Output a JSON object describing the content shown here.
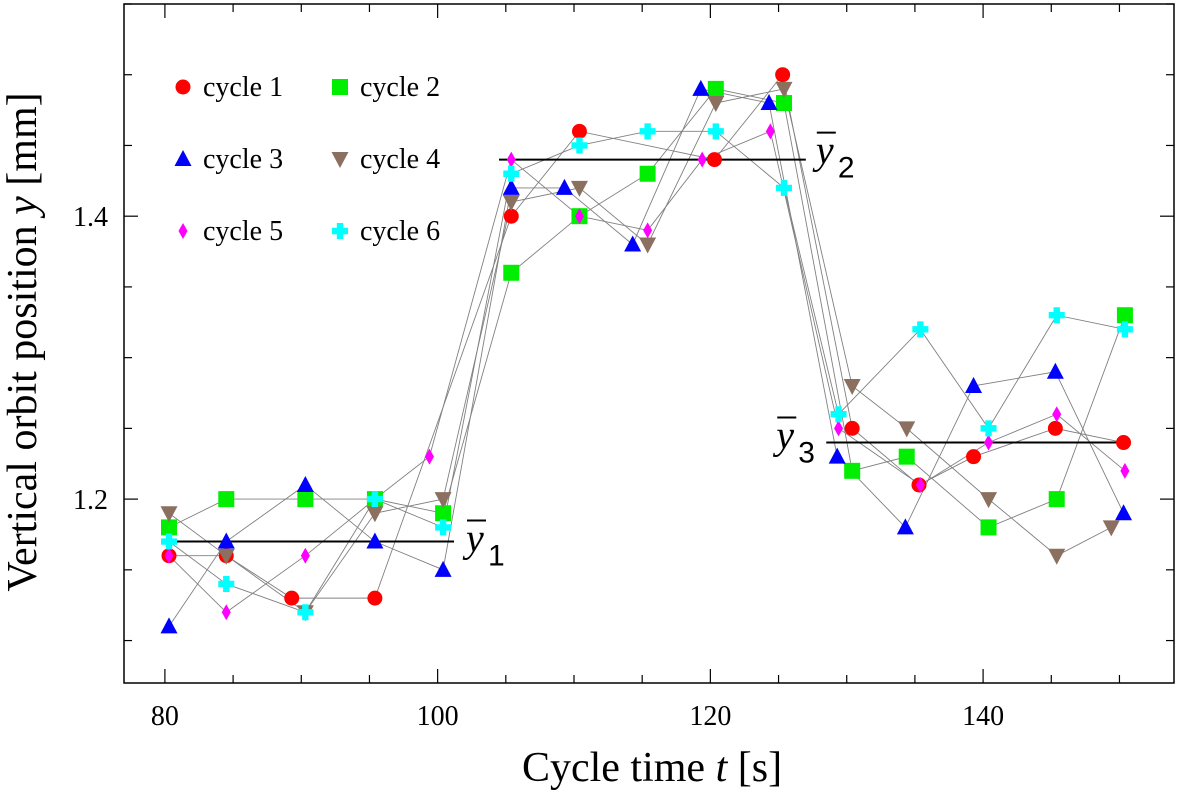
{
  "chart_data": {
    "type": "scatter",
    "xlabel_text": "Cycle time",
    "xlabel_var": "t",
    "xlabel_unit": "[s]",
    "ylabel_text": "Vertical orbit position",
    "ylabel_var": "y",
    "ylabel_unit": "[mm]",
    "xlim": [
      77,
      154
    ],
    "ylim": [
      1.07,
      1.55
    ],
    "xticks": [
      80,
      100,
      120,
      140
    ],
    "yticks": [
      1.2,
      1.4
    ],
    "x_minor_step": 5,
    "y_minor_step": 0.05,
    "grid": false,
    "legend_position": "top-left",
    "connect_series": true,
    "series": [
      {
        "name": "cycle 1",
        "color": "#ff0000",
        "marker": "circle",
        "x": [
          80.3,
          84.5,
          89.3,
          95.4,
          105.4,
          110.4,
          120.3,
          125.3,
          130.4,
          135.3,
          139.3,
          145.3,
          150.3
        ],
        "y": [
          1.16,
          1.16,
          1.13,
          1.13,
          1.4,
          1.46,
          1.44,
          1.5,
          1.25,
          1.21,
          1.23,
          1.25,
          1.24
        ]
      },
      {
        "name": "cycle 2",
        "color": "#00ee00",
        "marker": "square",
        "x": [
          80.3,
          84.5,
          90.3,
          95.4,
          100.4,
          105.4,
          110.4,
          115.4,
          120.4,
          125.4,
          130.4,
          134.4,
          140.4,
          145.4,
          150.4
        ],
        "y": [
          1.18,
          1.2,
          1.2,
          1.2,
          1.19,
          1.36,
          1.4,
          1.43,
          1.49,
          1.48,
          1.22,
          1.23,
          1.18,
          1.2,
          1.33
        ]
      },
      {
        "name": "cycle 3",
        "color": "#0000ff",
        "marker": "triangle-up",
        "x": [
          80.3,
          84.5,
          90.3,
          95.4,
          100.4,
          105.4,
          109.3,
          114.3,
          119.3,
          124.3,
          129.3,
          134.3,
          139.3,
          145.3,
          150.3
        ],
        "y": [
          1.11,
          1.17,
          1.21,
          1.17,
          1.15,
          1.42,
          1.42,
          1.38,
          1.49,
          1.48,
          1.23,
          1.18,
          1.28,
          1.29,
          1.19
        ]
      },
      {
        "name": "cycle 4",
        "color": "#8b6f5f",
        "marker": "triangle-down",
        "x": [
          80.3,
          84.5,
          90.3,
          95.4,
          100.4,
          105.4,
          110.4,
          115.4,
          120.4,
          125.4,
          130.4,
          134.4,
          140.4,
          145.4,
          149.4
        ],
        "y": [
          1.19,
          1.16,
          1.12,
          1.19,
          1.2,
          1.41,
          1.42,
          1.38,
          1.48,
          1.49,
          1.28,
          1.25,
          1.2,
          1.16,
          1.18
        ]
      },
      {
        "name": "cycle 5",
        "color": "#ff00ff",
        "marker": "diamond",
        "x": [
          80.3,
          84.5,
          90.3,
          95.4,
          99.4,
          105.4,
          110.4,
          115.4,
          119.4,
          124.4,
          129.4,
          135.4,
          140.4,
          145.4,
          150.4
        ],
        "y": [
          1.16,
          1.12,
          1.16,
          1.2,
          1.23,
          1.44,
          1.4,
          1.39,
          1.44,
          1.46,
          1.25,
          1.21,
          1.24,
          1.26,
          1.22
        ]
      },
      {
        "name": "cycle 6",
        "color": "#00ffff",
        "marker": "cross",
        "x": [
          80.3,
          84.5,
          90.3,
          95.4,
          100.4,
          105.4,
          110.4,
          115.4,
          120.4,
          125.4,
          129.4,
          135.4,
          140.4,
          145.4,
          150.4
        ],
        "y": [
          1.17,
          1.14,
          1.12,
          1.2,
          1.18,
          1.43,
          1.45,
          1.46,
          1.46,
          1.42,
          1.26,
          1.32,
          1.25,
          1.33,
          1.32
        ]
      }
    ],
    "mean_lines": [
      {
        "symbol": "y",
        "subscript": "1",
        "x_start": 80.3,
        "x_end": 101.2,
        "y": 1.17
      },
      {
        "symbol": "y",
        "subscript": "2",
        "x_start": 104.5,
        "x_end": 127.0,
        "y": 1.44
      },
      {
        "symbol": "y",
        "subscript": "3",
        "x_start": 128.5,
        "x_end": 150.4,
        "y": 1.24
      }
    ]
  }
}
